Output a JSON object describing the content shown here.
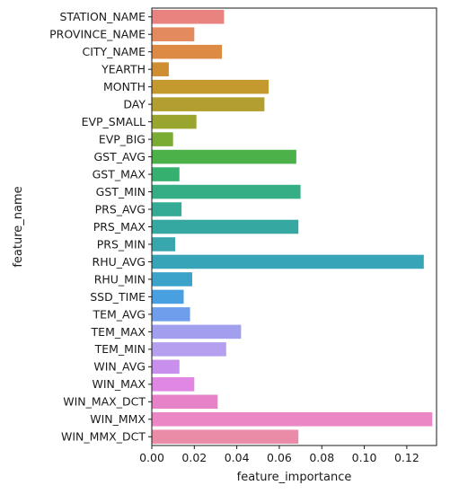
{
  "chart_data": {
    "type": "bar",
    "orientation": "horizontal",
    "title": "",
    "xlabel": "feature_importance",
    "ylabel": "feature_name",
    "xlim": [
      0,
      0.134
    ],
    "xticks": [
      0.0,
      0.02,
      0.04,
      0.06,
      0.08,
      0.1,
      0.12
    ],
    "xtick_labels": [
      "0.00",
      "0.02",
      "0.04",
      "0.06",
      "0.08",
      "0.10",
      "0.12"
    ],
    "grid": false,
    "categories": [
      "STATION_NAME",
      "PROVINCE_NAME",
      "CITY_NAME",
      "YEARTH",
      "MONTH",
      "DAY",
      "EVP_SMALL",
      "EVP_BIG",
      "GST_AVG",
      "GST_MAX",
      "GST_MIN",
      "PRS_AVG",
      "PRS_MAX",
      "PRS_MIN",
      "RHU_AVG",
      "RHU_MIN",
      "SSD_TIME",
      "TEM_AVG",
      "TEM_MAX",
      "TEM_MIN",
      "WIN_AVG",
      "WIN_MAX",
      "WIN_MAX_DCT",
      "WIN_MMX",
      "WIN_MMX_DCT"
    ],
    "values": [
      0.034,
      0.02,
      0.033,
      0.008,
      0.055,
      0.053,
      0.021,
      0.01,
      0.068,
      0.013,
      0.07,
      0.014,
      0.069,
      0.011,
      0.128,
      0.019,
      0.015,
      0.018,
      0.042,
      0.035,
      0.013,
      0.02,
      0.031,
      0.132,
      0.069
    ],
    "colors": [
      "#e8837f",
      "#e48a5f",
      "#dd8a45",
      "#cf8e32",
      "#c49a2f",
      "#b39f2f",
      "#9aa52f",
      "#7aab32",
      "#4db14a",
      "#36b06f",
      "#35ae86",
      "#35ab95",
      "#35a9a1",
      "#37a7ad",
      "#38a4b8",
      "#3ba2c9",
      "#48a0e0",
      "#6e9eec",
      "#a2a0ee",
      "#b59fef",
      "#c98fec",
      "#df87e2",
      "#e782c9",
      "#eb87c4",
      "#ea8ca8"
    ]
  }
}
